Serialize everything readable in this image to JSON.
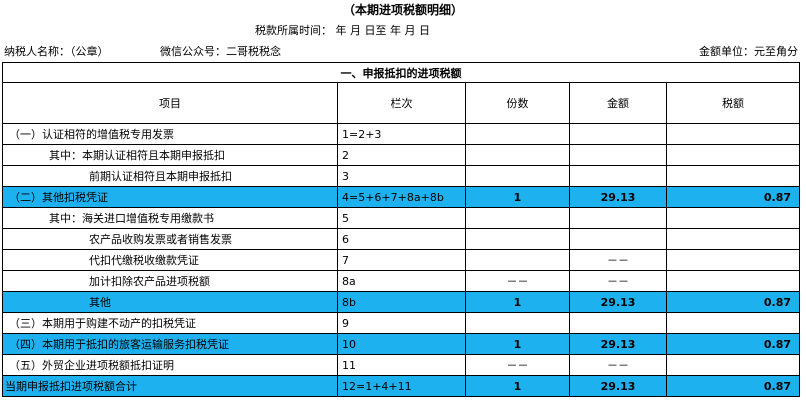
{
  "header": {
    "title": "（本期进项税额明细）",
    "period": "税款所属时间：  年    月    日至    年    月    日",
    "taxpayer": "纳税人名称：（公章）",
    "wechat": "微信公众号：二哥税税念",
    "unit": "金额单位：元至角分"
  },
  "table": {
    "section": "一、申报抵扣的进项税额",
    "columns": [
      "项目",
      "栏次",
      "份数",
      "金额",
      "税额"
    ],
    "rows": [
      {
        "level": 0,
        "item": "（一）认证相符的增值税专用发票",
        "code": "1=2+3"
      },
      {
        "level": 1,
        "item": "其中：本期认证相符且本期申报抵扣",
        "code": "2"
      },
      {
        "level": 2,
        "item": "前期认证相符且本期申报抵扣",
        "code": "3"
      },
      {
        "level": 0,
        "item": "（二）其他扣税凭证",
        "code": "4=5+6+7+8a+8b",
        "count": "1",
        "amount": "29.13",
        "tax": "0.87",
        "highlight": true
      },
      {
        "level": 1,
        "item": "其中：海关进口增值税专用缴款书",
        "code": "5"
      },
      {
        "level": 2,
        "item": "农产品收购发票或者销售发票",
        "code": "6"
      },
      {
        "level": 2,
        "item": "代扣代缴税收缴款凭证",
        "code": "7",
        "amount": "－－"
      },
      {
        "level": 2,
        "item": "加计扣除农产品进项税额",
        "code": "8a",
        "count": "－－",
        "amount": "－－"
      },
      {
        "level": 2,
        "item": "其他",
        "code": "8b",
        "count": "1",
        "amount": "29.13",
        "tax": "0.87",
        "highlight": true
      },
      {
        "level": 0,
        "item": "（三）本期用于购建不动产的扣税凭证",
        "code": "9"
      },
      {
        "level": 0,
        "item": "（四）本期用于抵扣的旅客运输服务扣税凭证",
        "code": "10",
        "count": "1",
        "amount": "29.13",
        "tax": "0.87",
        "highlight": true
      },
      {
        "level": 0,
        "item": "（五）外贸企业进项税额抵扣证明",
        "code": "11",
        "count": "－－",
        "amount": "－－"
      },
      {
        "level": -1,
        "item": "当期申报抵扣进项税额合计",
        "code": "12=1+4+11",
        "count": "1",
        "amount": "29.13",
        "tax": "0.87",
        "highlight": true
      }
    ]
  }
}
